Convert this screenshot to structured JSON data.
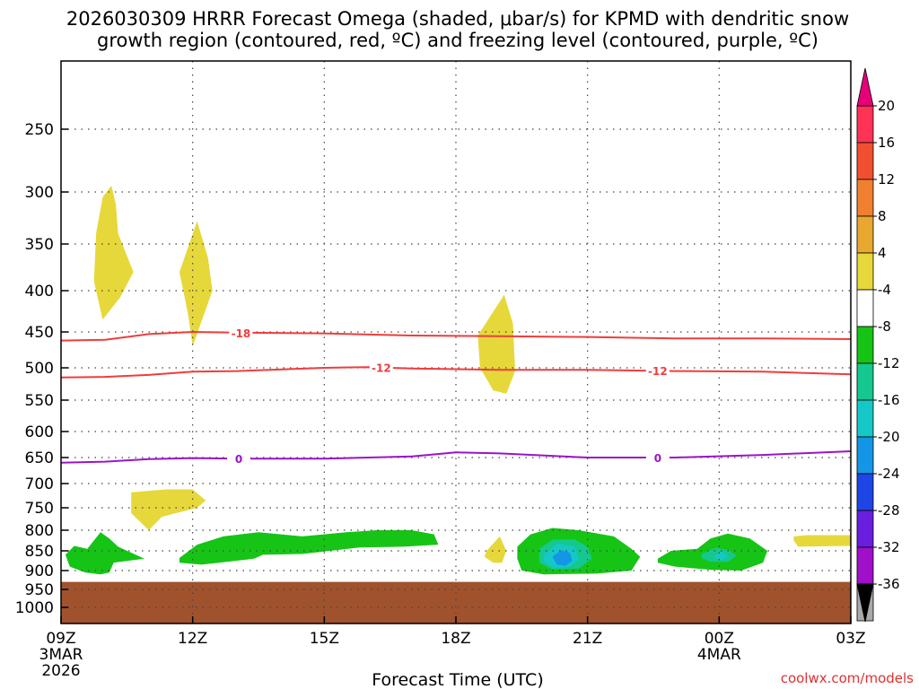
{
  "chart_data": {
    "type": "heatmap",
    "title_line1": "2026030309 HRRR Forecast Omega (shaded, μbar/s) for KPMD with dendritic snow",
    "title_line2": "growth region (contoured, red, ºC) and freezing level (contoured, purple, ºC)",
    "xlabel": "Forecast Time (UTC)",
    "ylabel": "",
    "credit": "coolwx.com/models",
    "x_ticks": [
      {
        "hour": 0,
        "label": "09Z",
        "sub1": "3MAR",
        "sub2": "2026"
      },
      {
        "hour": 3,
        "label": "12Z"
      },
      {
        "hour": 6,
        "label": "15Z"
      },
      {
        "hour": 9,
        "label": "18Z"
      },
      {
        "hour": 12,
        "label": "21Z"
      },
      {
        "hour": 15,
        "label": "00Z",
        "sub1": "4MAR"
      },
      {
        "hour": 18,
        "label": "03Z"
      }
    ],
    "xlim_hours": [
      0,
      18
    ],
    "y_ticks": [
      250,
      300,
      350,
      400,
      450,
      500,
      550,
      600,
      650,
      700,
      750,
      800,
      850,
      900,
      950,
      1000
    ],
    "ylim_mb": [
      200,
      1030
    ],
    "ground_top_mb": 930,
    "colorbar": {
      "labels": [
        "20",
        "16",
        "12",
        "8",
        "4",
        "-4",
        "-8",
        "-12",
        "-16",
        "-20",
        "-24",
        "-28",
        "-32",
        "-36"
      ],
      "colors": [
        "#ff3355",
        "#f05030",
        "#f08030",
        "#e8a830",
        "#e6d83a",
        "#ffffff",
        "#16c416",
        "#14c890",
        "#14c8c8",
        "#1496e6",
        "#1e46e6",
        "#6a1ee0",
        "#a010c8",
        "#aaaaaa"
      ],
      "top_arrow_color": "#e6007a",
      "bottom_arrow_color": "#000000"
    },
    "ground_color": "#a0522d",
    "contours": [
      {
        "name": "temp -18C",
        "label": "-18",
        "color": "#f03c3c",
        "points": [
          [
            0,
            462
          ],
          [
            1,
            461
          ],
          [
            2,
            453
          ],
          [
            3,
            450
          ],
          [
            4,
            451
          ],
          [
            6,
            452
          ],
          [
            8,
            455
          ],
          [
            10,
            456
          ],
          [
            12,
            457
          ],
          [
            14,
            459
          ],
          [
            16,
            459
          ],
          [
            18,
            460
          ]
        ],
        "label_hour": 4.1
      },
      {
        "name": "temp -12C",
        "label": "-12",
        "color": "#f03c3c",
        "points": [
          [
            0,
            515
          ],
          [
            1,
            514
          ],
          [
            2,
            511
          ],
          [
            3,
            506
          ],
          [
            4,
            505
          ],
          [
            6,
            500
          ],
          [
            7,
            499
          ],
          [
            8,
            501
          ],
          [
            10,
            503
          ],
          [
            12,
            503
          ],
          [
            14,
            505
          ],
          [
            16,
            506
          ],
          [
            18,
            510
          ]
        ],
        "label_hour": 7.3
      },
      {
        "name": "temp -12C east",
        "label": "-12",
        "color": "#f03c3c",
        "points": [],
        "label_hour": 13.6,
        "label_mb": 504
      },
      {
        "name": "freezing level 0C",
        "label": "0",
        "color": "#9a14c8",
        "points": [
          [
            0,
            660
          ],
          [
            1,
            658
          ],
          [
            2,
            653
          ],
          [
            3,
            651
          ],
          [
            4,
            652
          ],
          [
            6,
            652
          ],
          [
            8,
            648
          ],
          [
            9,
            640
          ],
          [
            10,
            642
          ],
          [
            12,
            650
          ],
          [
            14,
            650
          ],
          [
            16,
            645
          ],
          [
            18,
            638
          ]
        ],
        "label_hour": 4.05
      },
      {
        "name": "freezing level 0C east",
        "label": "0",
        "color": "#9a14c8",
        "points": [],
        "label_hour": 13.6,
        "label_mb": 650
      }
    ],
    "shaded_regions": [
      {
        "name": "omega +4 upper a",
        "value": 5,
        "color": "#e6d83a",
        "points": [
          [
            0.95,
            305
          ],
          [
            1.15,
            295
          ],
          [
            1.25,
            312
          ],
          [
            1.3,
            340
          ],
          [
            1.65,
            380
          ],
          [
            1.35,
            408
          ],
          [
            0.95,
            435
          ],
          [
            0.75,
            390
          ],
          [
            0.8,
            340
          ]
        ]
      },
      {
        "name": "omega +4 upper b",
        "value": 5,
        "color": "#e6d83a",
        "points": [
          [
            2.7,
            380
          ],
          [
            3.1,
            328
          ],
          [
            3.35,
            365
          ],
          [
            3.45,
            400
          ],
          [
            3.25,
            430
          ],
          [
            3.0,
            470
          ],
          [
            2.9,
            430
          ]
        ]
      },
      {
        "name": "omega +4 mid",
        "value": 5,
        "color": "#e6d83a",
        "points": [
          [
            9.5,
            455
          ],
          [
            10.1,
            405
          ],
          [
            10.3,
            440
          ],
          [
            10.35,
            505
          ],
          [
            10.15,
            540
          ],
          [
            9.85,
            535
          ],
          [
            9.55,
            500
          ]
        ]
      },
      {
        "name": "omega +4 lower a",
        "value": 5,
        "color": "#e6d83a",
        "points": [
          [
            1.6,
            718
          ],
          [
            2.4,
            712
          ],
          [
            3.0,
            712
          ],
          [
            3.3,
            735
          ],
          [
            3.1,
            750
          ],
          [
            2.3,
            770
          ],
          [
            2.0,
            800
          ],
          [
            1.6,
            762
          ]
        ]
      },
      {
        "name": "omega +4 lower b",
        "value": 5,
        "color": "#e6d83a",
        "points": [
          [
            9.7,
            850
          ],
          [
            10.0,
            815
          ],
          [
            10.15,
            850
          ],
          [
            10.05,
            880
          ],
          [
            9.85,
            880
          ],
          [
            9.65,
            865
          ]
        ]
      },
      {
        "name": "omega +4 lower c",
        "value": 5,
        "color": "#e6d83a",
        "points": [
          [
            16.7,
            815
          ],
          [
            17.0,
            812
          ],
          [
            18.0,
            812
          ],
          [
            18.0,
            838
          ],
          [
            16.8,
            840
          ],
          [
            16.7,
            825
          ]
        ]
      },
      {
        "name": "omega -4 a",
        "value": -6,
        "color": "#16c416",
        "points": [
          [
            0.1,
            860
          ],
          [
            0.3,
            838
          ],
          [
            0.6,
            845
          ],
          [
            0.9,
            805
          ],
          [
            1.1,
            820
          ],
          [
            1.3,
            840
          ],
          [
            1.9,
            870
          ],
          [
            1.2,
            880
          ],
          [
            1.1,
            905
          ],
          [
            0.9,
            910
          ],
          [
            0.55,
            905
          ],
          [
            0.2,
            890
          ]
        ]
      },
      {
        "name": "omega -4 b",
        "value": -6,
        "color": "#16c416",
        "points": [
          [
            2.7,
            868
          ],
          [
            3.1,
            835
          ],
          [
            3.7,
            815
          ],
          [
            4.5,
            805
          ],
          [
            5.5,
            815
          ],
          [
            6.5,
            805
          ],
          [
            7.2,
            800
          ],
          [
            8.0,
            800
          ],
          [
            8.5,
            810
          ],
          [
            8.6,
            835
          ],
          [
            7.8,
            840
          ],
          [
            6.8,
            842
          ],
          [
            5.5,
            858
          ],
          [
            4.6,
            860
          ],
          [
            4.4,
            870
          ],
          [
            3.6,
            880
          ],
          [
            3.2,
            885
          ],
          [
            2.7,
            880
          ]
        ]
      },
      {
        "name": "omega -4 c",
        "value": -6,
        "color": "#16c416",
        "points": [
          [
            10.4,
            840
          ],
          [
            10.7,
            810
          ],
          [
            11.2,
            795
          ],
          [
            11.8,
            800
          ],
          [
            12.6,
            815
          ],
          [
            13.0,
            845
          ],
          [
            13.2,
            865
          ],
          [
            13.0,
            900
          ],
          [
            12.2,
            908
          ],
          [
            11.0,
            910
          ],
          [
            10.5,
            900
          ],
          [
            10.4,
            870
          ]
        ]
      },
      {
        "name": "omega -4 d",
        "value": -6,
        "color": "#16c416",
        "points": [
          [
            13.6,
            870
          ],
          [
            13.9,
            850
          ],
          [
            14.5,
            845
          ],
          [
            14.8,
            820
          ],
          [
            15.2,
            808
          ],
          [
            15.7,
            820
          ],
          [
            16.1,
            850
          ],
          [
            16.0,
            880
          ],
          [
            15.5,
            900
          ],
          [
            14.8,
            898
          ],
          [
            14.0,
            890
          ],
          [
            13.6,
            880
          ]
        ]
      },
      {
        "name": "omega -8 c",
        "value": -10,
        "color": "#14c890",
        "points": [
          [
            10.9,
            845
          ],
          [
            11.2,
            823
          ],
          [
            11.7,
            822
          ],
          [
            12.0,
            840
          ],
          [
            12.1,
            870
          ],
          [
            11.8,
            895
          ],
          [
            11.2,
            897
          ],
          [
            10.9,
            880
          ]
        ]
      },
      {
        "name": "omega -8 d",
        "value": -10,
        "color": "#14c890",
        "points": [
          [
            14.6,
            858
          ],
          [
            14.9,
            843
          ],
          [
            15.2,
            847
          ],
          [
            15.4,
            862
          ],
          [
            15.2,
            878
          ],
          [
            14.8,
            878
          ],
          [
            14.6,
            868
          ]
        ]
      },
      {
        "name": "omega -12 c",
        "value": -14,
        "color": "#14c8c8",
        "points": [
          [
            11.0,
            860
          ],
          [
            11.3,
            833
          ],
          [
            11.7,
            840
          ],
          [
            11.8,
            870
          ],
          [
            11.6,
            890
          ],
          [
            11.2,
            892
          ],
          [
            11.0,
            878
          ]
        ]
      },
      {
        "name": "omega -16 c",
        "value": -18,
        "color": "#1496e6",
        "points": [
          [
            11.2,
            865
          ],
          [
            11.4,
            848
          ],
          [
            11.6,
            855
          ],
          [
            11.65,
            875
          ],
          [
            11.5,
            888
          ],
          [
            11.3,
            885
          ]
        ]
      },
      {
        "name": "omega -16 d",
        "value": -18,
        "color": "#14c8c8",
        "points": [
          [
            14.9,
            862
          ],
          [
            15.05,
            853
          ],
          [
            15.2,
            862
          ],
          [
            15.1,
            872
          ],
          [
            14.95,
            870
          ]
        ]
      }
    ]
  }
}
